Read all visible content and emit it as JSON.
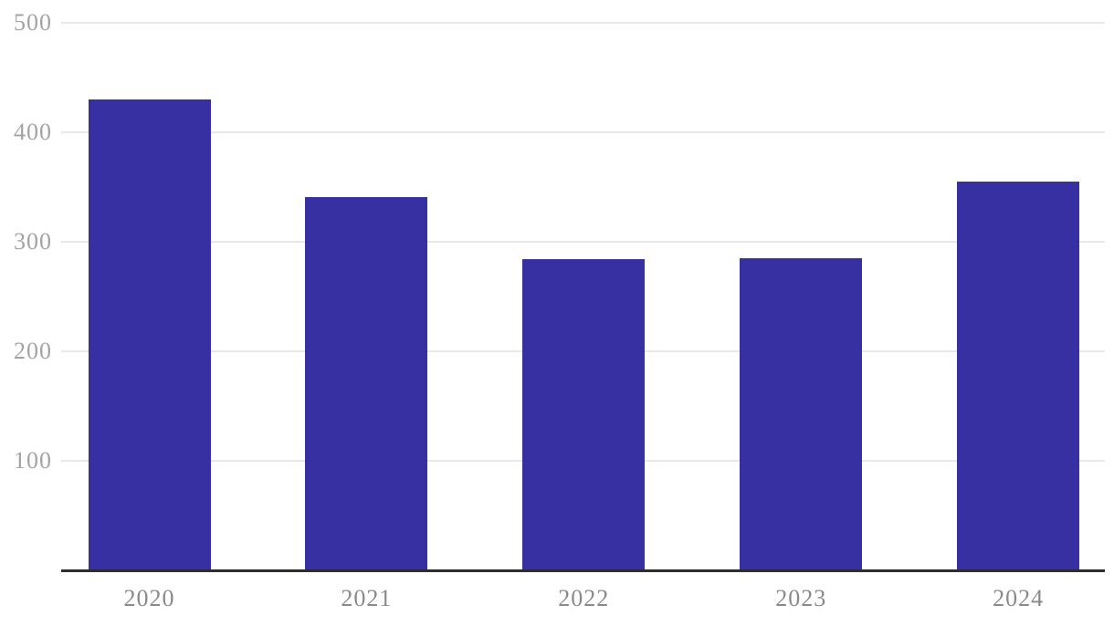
{
  "chart_data": {
    "type": "bar",
    "title": "",
    "xlabel": "",
    "ylabel": "",
    "categories": [
      "2020",
      "2021",
      "2022",
      "2023",
      "2024"
    ],
    "values": [
      430,
      341,
      284,
      285,
      355
    ],
    "ylim": [
      0,
      500
    ],
    "yticks": [
      100,
      200,
      300,
      400,
      500
    ],
    "grid": true,
    "legend": "none",
    "colors": {
      "bar": "#3730a3",
      "gridline": "#e8e8e8",
      "axis_line": "#2d2d2d",
      "y_tick_label": "#a3a3a3",
      "x_tick_label": "#8a8a8a",
      "background": "#ffffff"
    }
  }
}
